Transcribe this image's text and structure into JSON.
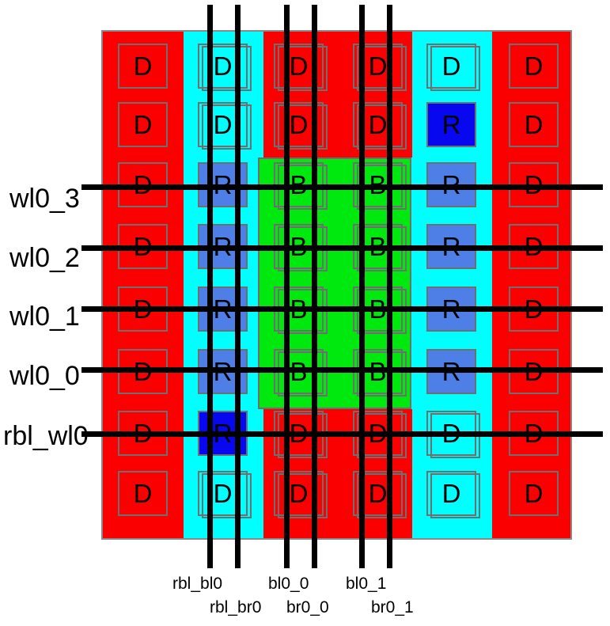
{
  "colors": {
    "canvas_bg": "#ffffff",
    "dummy_red": "#fa0000",
    "replica_column_cyan": "#00ffff",
    "bitcell_green": "#00e90e",
    "replica_cell_blue": "#4d7fe6",
    "replica_cell_dark_blue": "#0808f0",
    "cell_outline_gray": "#6f6f6f",
    "array_border_gray": "#8a8a8a",
    "signal_line_black": "#000000",
    "label_text_black": "#000000"
  },
  "cells": {
    "rows": [
      [
        "D",
        "D",
        "D",
        "D",
        "D",
        "D"
      ],
      [
        "D",
        "D",
        "D",
        "D",
        "R*",
        "D"
      ],
      [
        "D",
        "R",
        "B",
        "B",
        "R",
        "D"
      ],
      [
        "D",
        "R",
        "B",
        "B",
        "R",
        "D"
      ],
      [
        "D",
        "R",
        "B",
        "B",
        "R",
        "D"
      ],
      [
        "D",
        "R",
        "B",
        "B",
        "R",
        "D"
      ],
      [
        "D",
        "R*",
        "D",
        "D",
        "D",
        "D"
      ],
      [
        "D",
        "D",
        "D",
        "D",
        "D",
        "D"
      ]
    ]
  },
  "wordlines": [
    {
      "name": "wl0_3"
    },
    {
      "name": "wl0_2"
    },
    {
      "name": "wl0_1"
    },
    {
      "name": "wl0_0"
    },
    {
      "name": "rbl_wl0"
    }
  ],
  "bitlines": [
    {
      "name": "rbl_bl0"
    },
    {
      "name": "rbl_br0"
    },
    {
      "name": "bl0_0"
    },
    {
      "name": "br0_0"
    },
    {
      "name": "bl0_1"
    },
    {
      "name": "br0_1"
    }
  ]
}
